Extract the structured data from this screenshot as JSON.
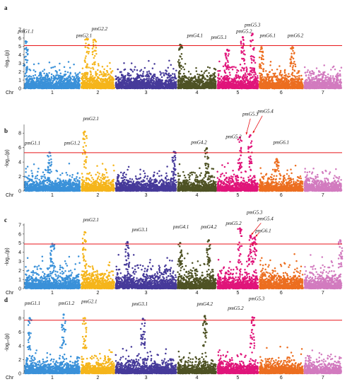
{
  "figure": {
    "chromosome_axis_label": "Chr",
    "chromosomes": [
      "1",
      "2",
      "3",
      "4",
      "5",
      "6",
      "7"
    ],
    "chromosome_colors": [
      "#3a91d9",
      "#f5b51b",
      "#463a9a",
      "#4e5224",
      "#e0157a",
      "#ec6e20",
      "#d27bbf"
    ],
    "threshold_color": "#e8161b"
  },
  "chart_data": [
    {
      "type": "scatter",
      "subtype": "manhattan",
      "panel": "a",
      "ylabel": "-log₁₀(p)",
      "ylim": [
        0,
        7
      ],
      "yticks": [
        0,
        1,
        2,
        3,
        4,
        5,
        6,
        7
      ],
      "threshold": 5.1,
      "chromosomes": [
        "1",
        "2",
        "3",
        "4",
        "5",
        "6",
        "7"
      ],
      "baseline_max": [
        3.2,
        3.8,
        3.4,
        3.4,
        3.5,
        3.4,
        3.1
      ],
      "peaks": [
        {
          "chr": 1,
          "pos": 0.03,
          "value": 5.6
        },
        {
          "chr": 2,
          "pos": 0.18,
          "value": 5.9
        },
        {
          "chr": 2,
          "pos": 0.4,
          "value": 5.8
        },
        {
          "chr": 4,
          "pos": 0.08,
          "value": 5.2
        },
        {
          "chr": 5,
          "pos": 0.25,
          "value": 4.6
        },
        {
          "chr": 5,
          "pos": 0.62,
          "value": 6.1
        },
        {
          "chr": 5,
          "pos": 0.85,
          "value": 6.5
        },
        {
          "chr": 6,
          "pos": 0.06,
          "value": 4.9
        },
        {
          "chr": 6,
          "pos": 0.75,
          "value": 4.9
        }
      ],
      "annotations": [
        {
          "label": "pmG1.1",
          "chr": 1,
          "pos": 0.03,
          "value": 6.6
        },
        {
          "label": "pmG2.1",
          "chr": 2,
          "pos": 0.1,
          "value": 6.1
        },
        {
          "label": "pmG2.2",
          "chr": 2,
          "pos": 0.55,
          "value": 6.9
        },
        {
          "label": "pmG4.1",
          "chr": 4,
          "pos": 0.45,
          "value": 6.1
        },
        {
          "label": "pmG5.1",
          "chr": 5,
          "pos": 0.05,
          "value": 5.9
        },
        {
          "label": "pmG5.2",
          "chr": 5,
          "pos": 0.65,
          "value": 6.6
        },
        {
          "label": "pmG5.3",
          "chr": 5,
          "pos": 0.85,
          "value": 7.4
        },
        {
          "label": "pmG6.1",
          "chr": 6,
          "pos": 0.2,
          "value": 6.1
        },
        {
          "label": "pmG6.2",
          "chr": 6,
          "pos": 0.82,
          "value": 6.1
        }
      ]
    },
    {
      "type": "scatter",
      "subtype": "manhattan",
      "panel": "b",
      "ylabel": "-log₁₀(p)",
      "ylim": [
        0,
        9
      ],
      "yticks": [
        0,
        2,
        4,
        6,
        8
      ],
      "threshold": 5.3,
      "chromosomes": [
        "1",
        "2",
        "3",
        "4",
        "5",
        "6",
        "7"
      ],
      "baseline_max": [
        3.9,
        3.8,
        4.2,
        4.0,
        4.6,
        4.2,
        3.9
      ],
      "peaks": [
        {
          "chr": 1,
          "pos": 0.45,
          "value": 5.3
        },
        {
          "chr": 2,
          "pos": 0.12,
          "value": 8.2
        },
        {
          "chr": 3,
          "pos": 0.95,
          "value": 5.4
        },
        {
          "chr": 4,
          "pos": 0.75,
          "value": 5.9
        },
        {
          "chr": 5,
          "pos": 0.55,
          "value": 7.4
        },
        {
          "chr": 5,
          "pos": 0.8,
          "value": 7.7
        },
        {
          "chr": 6,
          "pos": 0.4,
          "value": 4.4
        }
      ],
      "annotations": [
        {
          "label": "pmG1.1",
          "chr": 1,
          "pos": 0.15,
          "value": 6.4
        },
        {
          "label": "pmG1.2",
          "chr": 1,
          "pos": 0.85,
          "value": 6.4
        },
        {
          "label": "pmG2.1",
          "chr": 2,
          "pos": 0.3,
          "value": 9.8
        },
        {
          "label": "pmG4.2",
          "chr": 4,
          "pos": 0.55,
          "value": 6.5
        },
        {
          "label": "pmG5.2",
          "chr": 5,
          "pos": 0.4,
          "value": 7.3
        },
        {
          "label": "pmG5.3",
          "chr": 5,
          "pos": 0.8,
          "value": 10.4
        },
        {
          "label": "pmG5.4",
          "chr": 6,
          "pos": 0.15,
          "value": 10.8
        },
        {
          "label": "pmG6.1",
          "chr": 6,
          "pos": 0.5,
          "value": 6.5
        }
      ]
    },
    {
      "type": "scatter",
      "subtype": "manhattan",
      "panel": "c",
      "ylabel": "-log₁₀(p)",
      "ylim": [
        0,
        7
      ],
      "yticks": [
        0,
        1,
        2,
        3,
        4,
        5,
        6,
        7
      ],
      "threshold": 4.9,
      "chromosomes": [
        "1",
        "2",
        "3",
        "4",
        "5",
        "6",
        "7"
      ],
      "baseline_max": [
        3.6,
        3.9,
        3.9,
        4.0,
        4.4,
        3.9,
        3.8
      ],
      "peaks": [
        {
          "chr": 1,
          "pos": 0.5,
          "value": 4.9
        },
        {
          "chr": 2,
          "pos": 0.12,
          "value": 6.2
        },
        {
          "chr": 3,
          "pos": 0.2,
          "value": 5.1
        },
        {
          "chr": 4,
          "pos": 0.08,
          "value": 5.0
        },
        {
          "chr": 4,
          "pos": 0.8,
          "value": 5.3
        },
        {
          "chr": 5,
          "pos": 0.55,
          "value": 6.6
        },
        {
          "chr": 5,
          "pos": 0.8,
          "value": 5.8
        },
        {
          "chr": 5,
          "pos": 0.9,
          "value": 5.6
        },
        {
          "chr": 7,
          "pos": 0.95,
          "value": 5.3
        }
      ],
      "annotations": [
        {
          "label": "pmG2.1",
          "chr": 2,
          "pos": 0.3,
          "value": 7.4
        },
        {
          "label": "pmG3.1",
          "chr": 3,
          "pos": 0.4,
          "value": 6.3
        },
        {
          "label": "pmG4.1",
          "chr": 4,
          "pos": 0.1,
          "value": 6.6
        },
        {
          "label": "pmG4.2",
          "chr": 4,
          "pos": 0.8,
          "value": 6.6
        },
        {
          "label": "pmG5.2",
          "chr": 5,
          "pos": 0.4,
          "value": 7.0
        },
        {
          "label": "pmG5.3",
          "chr": 5,
          "pos": 0.9,
          "value": 8.2
        },
        {
          "label": "pmG5.4",
          "chr": 6,
          "pos": 0.15,
          "value": 7.5
        },
        {
          "label": "pmG6.1",
          "chr": 6,
          "pos": 0.1,
          "value": 6.2
        }
      ]
    },
    {
      "type": "scatter",
      "subtype": "manhattan",
      "panel": "d",
      "ylabel": "-log₁₀(p)",
      "ylim": [
        0,
        9
      ],
      "yticks": [
        0,
        2,
        4,
        6,
        8
      ],
      "threshold": 7.7,
      "chromosomes": [
        "1",
        "2",
        "3",
        "4",
        "5",
        "6",
        "7"
      ],
      "baseline_max": [
        5.6,
        5.9,
        5.8,
        5.9,
        6.1,
        5.7,
        5.6
      ],
      "peaks": [
        {
          "chr": 1,
          "pos": 0.1,
          "value": 8.0
        },
        {
          "chr": 1,
          "pos": 0.7,
          "value": 8.5
        },
        {
          "chr": 2,
          "pos": 0.12,
          "value": 8.0
        },
        {
          "chr": 3,
          "pos": 0.45,
          "value": 7.9
        },
        {
          "chr": 4,
          "pos": 0.7,
          "value": 8.3
        },
        {
          "chr": 5,
          "pos": 0.85,
          "value": 8.1
        }
      ],
      "annotations": [
        {
          "label": "pmG1.1",
          "chr": 1,
          "pos": 0.15,
          "value": 9.9
        },
        {
          "label": "pmG1.2",
          "chr": 1,
          "pos": 0.75,
          "value": 9.9
        },
        {
          "label": "pmG2.1",
          "chr": 2,
          "pos": 0.25,
          "value": 10.2
        },
        {
          "label": "pmG3.1",
          "chr": 3,
          "pos": 0.4,
          "value": 9.8
        },
        {
          "label": "pmG4.2",
          "chr": 4,
          "pos": 0.7,
          "value": 9.8
        },
        {
          "label": "pmG5.2",
          "chr": 5,
          "pos": 0.45,
          "value": 9.2
        },
        {
          "label": "pmG5.3",
          "chr": 5,
          "pos": 0.95,
          "value": 10.6
        }
      ]
    }
  ]
}
